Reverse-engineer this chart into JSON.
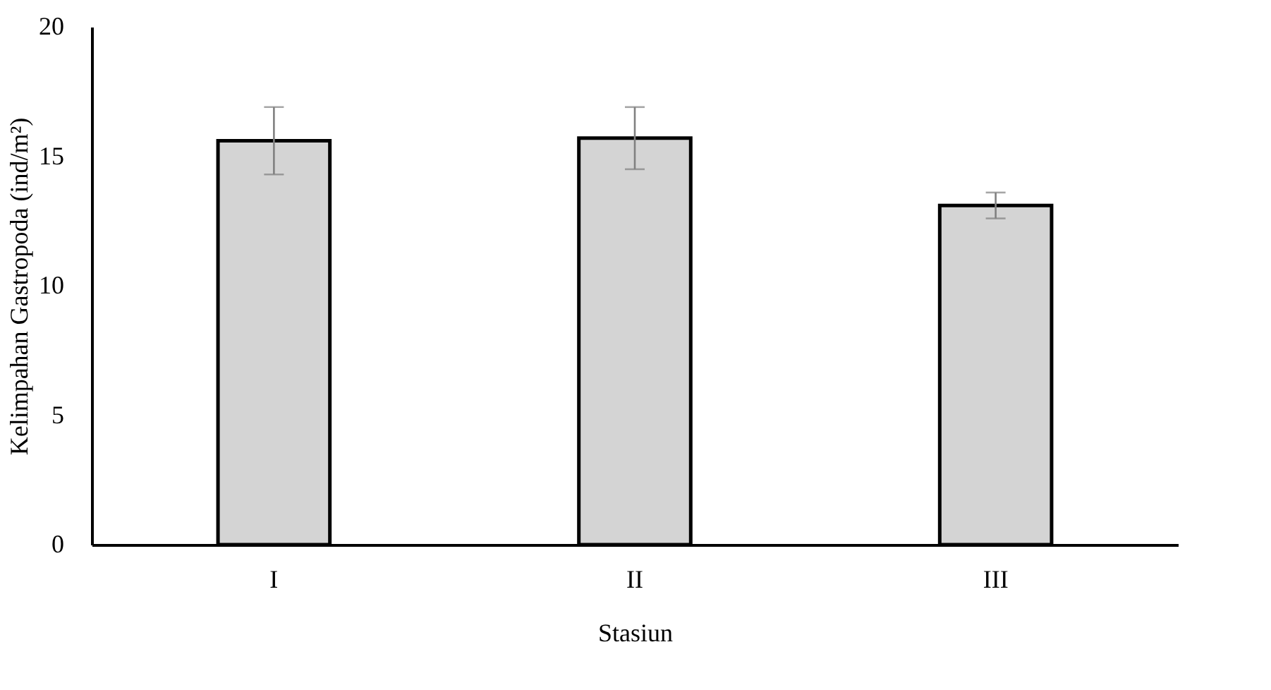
{
  "chart_data": {
    "type": "bar",
    "xlabel": "Stasiun",
    "ylabel": "Kelimpahan Gastropoda (ind/m²)",
    "categories": [
      "I",
      "II",
      "III"
    ],
    "values": [
      15.6,
      15.7,
      13.1
    ],
    "errors": [
      1.3,
      1.2,
      0.5
    ],
    "color": "#d4d4d4",
    "ylim": [
      0,
      20
    ],
    "yticks": [
      0,
      5,
      10,
      15,
      20
    ],
    "grid": false
  }
}
